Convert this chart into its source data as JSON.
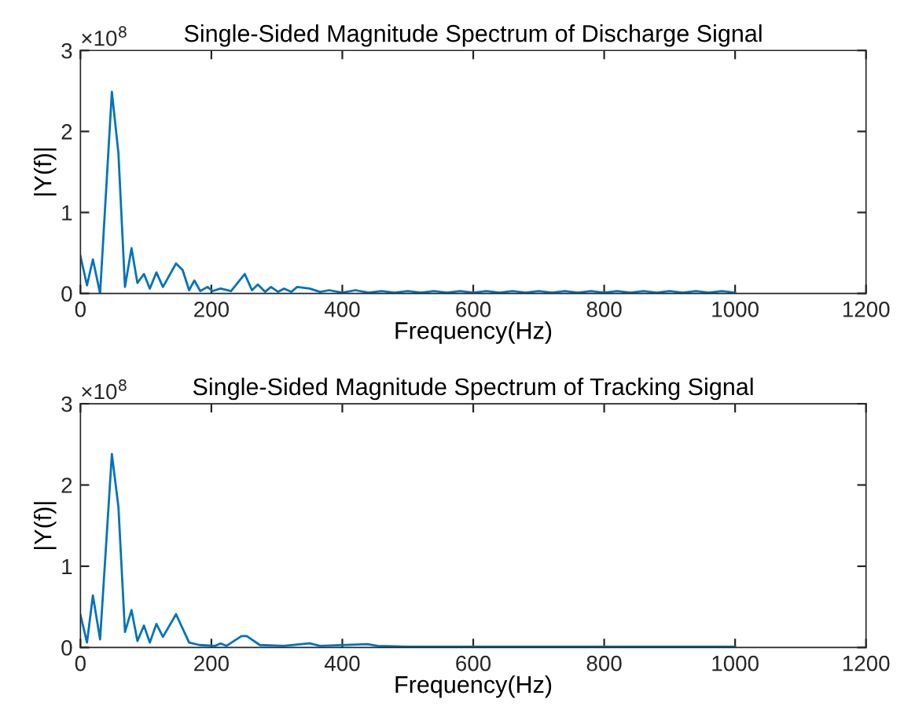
{
  "chart_data": [
    {
      "type": "line",
      "title": "Single-Sided Magnitude Spectrum of Discharge Signal",
      "xlabel": "Frequency(Hz)",
      "ylabel": "|Y(f)|",
      "annotations": [
        "×10$^{8}$"
      ],
      "xlim": [
        0,
        1200
      ],
      "xticks": [
        0,
        200,
        400,
        600,
        800,
        1000,
        1200
      ],
      "ylim": [
        0,
        3
      ],
      "yticks": [
        0,
        1,
        2,
        3
      ],
      "grid": false,
      "marker": "none",
      "line_style": "solid",
      "series": [
        {
          "color": "#0072bd",
          "x": [
            0,
            10,
            19,
            30,
            48,
            58,
            68,
            78,
            87,
            97,
            106,
            116,
            126,
            146,
            156,
            166,
            174,
            183,
            194,
            202,
            214,
            230,
            251,
            262,
            271,
            282,
            291,
            302,
            311,
            322,
            331,
            350,
            366,
            380,
            400,
            420,
            440,
            460,
            480,
            500,
            520,
            540,
            560,
            580,
            600,
            620,
            640,
            660,
            680,
            700,
            720,
            740,
            760,
            780,
            800,
            820,
            840,
            860,
            880,
            900,
            920,
            940,
            960,
            980,
            1000
          ],
          "values": [
            0.46,
            0.1,
            0.42,
            0,
            2.49,
            1.73,
            0.08,
            0.56,
            0.13,
            0.24,
            0.06,
            0.26,
            0.08,
            0.37,
            0.29,
            0.04,
            0.16,
            0.03,
            0.08,
            0.03,
            0.06,
            0.03,
            0.24,
            0.04,
            0.11,
            0.02,
            0.08,
            0.02,
            0.06,
            0.02,
            0.08,
            0.06,
            0.02,
            0.04,
            0.01,
            0.04,
            0.01,
            0.03,
            0.01,
            0.03,
            0.01,
            0.03,
            0.01,
            0.03,
            0.01,
            0.03,
            0.01,
            0.03,
            0.01,
            0.03,
            0.01,
            0.03,
            0.01,
            0.03,
            0.01,
            0.03,
            0.01,
            0.03,
            0.01,
            0.03,
            0.01,
            0.03,
            0.01,
            0.03,
            0.01
          ]
        }
      ]
    },
    {
      "type": "line",
      "title": "Single-Sided Magnitude Spectrum of Tracking Signal",
      "xlabel": "Frequency(Hz)",
      "ylabel": "|Y(f)|",
      "annotations": [
        "×10$^{8}$"
      ],
      "xlim": [
        0,
        1200
      ],
      "xticks": [
        0,
        200,
        400,
        600,
        800,
        1000,
        1200
      ],
      "ylim": [
        0,
        3
      ],
      "yticks": [
        0,
        1,
        2,
        3
      ],
      "grid": false,
      "marker": "none",
      "line_style": "solid",
      "series": [
        {
          "color": "#0072bd",
          "x": [
            0,
            10,
            19,
            30,
            48,
            58,
            68,
            78,
            87,
            97,
            106,
            116,
            126,
            146,
            166,
            182,
            206,
            214,
            223,
            246,
            254,
            274,
            310,
            350,
            366,
            438,
            454,
            500,
            600,
            700,
            800,
            900,
            1000
          ],
          "values": [
            0.4,
            0.06,
            0.64,
            0.1,
            2.38,
            1.73,
            0.19,
            0.46,
            0.08,
            0.27,
            0.06,
            0.29,
            0.13,
            0.41,
            0.06,
            0.03,
            0.02,
            0.05,
            0.02,
            0.14,
            0.14,
            0.03,
            0.02,
            0.05,
            0.02,
            0.04,
            0.02,
            0.01,
            0.01,
            0.01,
            0.01,
            0.01,
            0.01
          ]
        }
      ]
    }
  ]
}
